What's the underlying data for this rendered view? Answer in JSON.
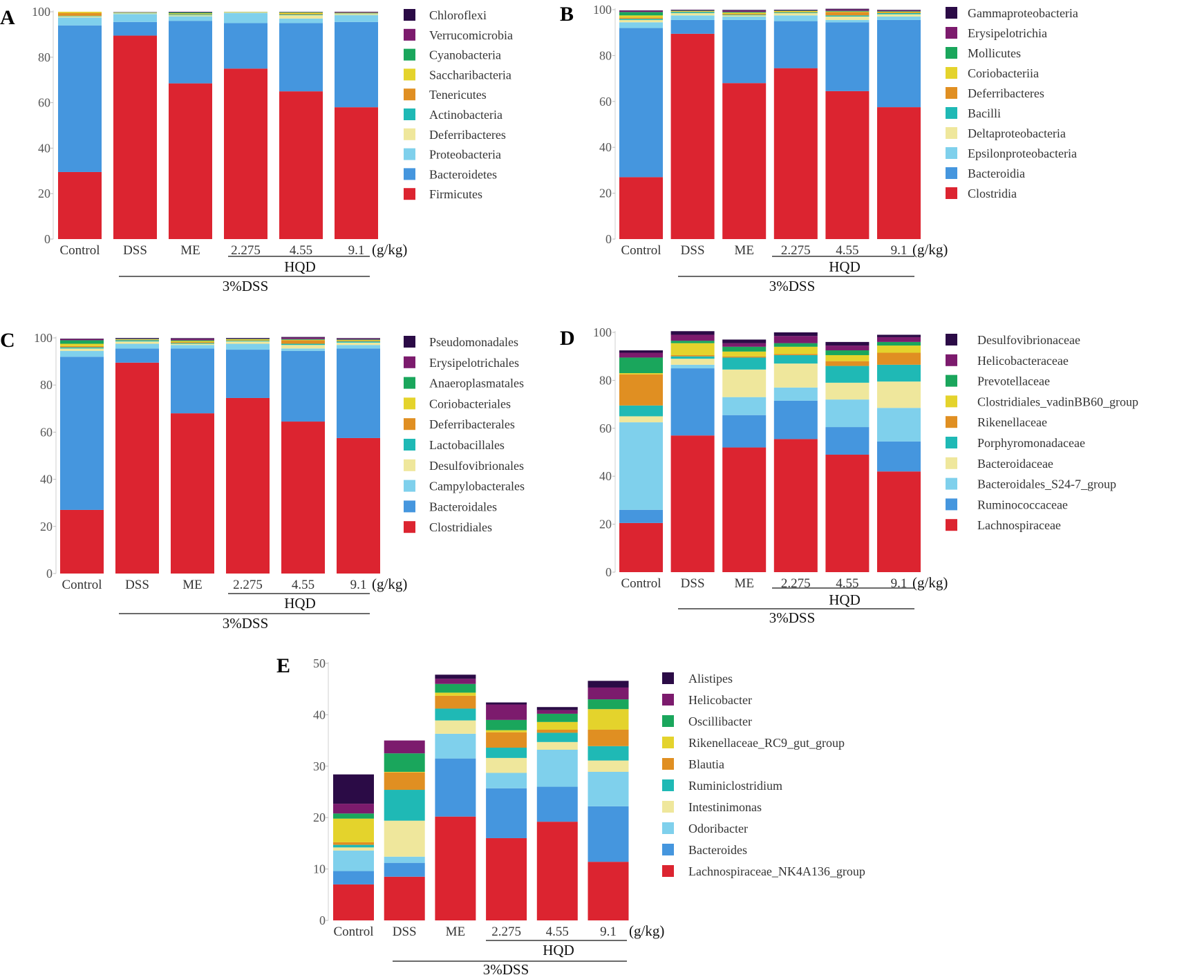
{
  "colors": {
    "c1": "#dc2430",
    "c2": "#4596de",
    "c3": "#7fd0ec",
    "c4": "#efe79c",
    "c5": "#1fb9b5",
    "c6": "#e08f22",
    "c7": "#e4d32c",
    "c8": "#1aa65c",
    "c9": "#7c1b6d",
    "c10": "#2b0b46"
  },
  "shared": {
    "categories": [
      "Control",
      "DSS",
      "ME",
      "2.275",
      "4.55",
      "9.1"
    ],
    "unit": "(g/kg)",
    "hqd_label": "HQD",
    "dss_label": "3%DSS"
  },
  "chart_data": [
    {
      "type": "bar",
      "stacked": true,
      "panel": "A",
      "ylabel": "",
      "xlabel": "",
      "ylim": [
        0,
        100
      ],
      "yticks": [
        0,
        20,
        40,
        60,
        80,
        100
      ],
      "categories": [
        "Control",
        "DSS",
        "ME",
        "2.275",
        "4.55",
        "9.1"
      ],
      "series": [
        {
          "name": "Firmicutes",
          "values": [
            29.5,
            89.5,
            68.5,
            75,
            65,
            58
          ]
        },
        {
          "name": "Bacteroidetes",
          "values": [
            64.5,
            6,
            27.5,
            20,
            30,
            37.5
          ]
        },
        {
          "name": "Proteobacteria",
          "values": [
            3.5,
            3.5,
            2,
            4.5,
            2,
            3
          ]
        },
        {
          "name": "Deferribacteres",
          "values": [
            0.5,
            0.3,
            0.5,
            0.2,
            1.5,
            0.5
          ]
        },
        {
          "name": "Actinobacteria",
          "values": [
            0.2,
            0.2,
            0.3,
            0.1,
            0.3,
            0.2
          ]
        },
        {
          "name": "Tenericutes",
          "values": [
            1.3,
            0.1,
            0.2,
            0.1,
            0.3,
            0.1
          ]
        },
        {
          "name": "Saccharibacteria",
          "values": [
            0.5,
            0.1,
            0.3,
            0.1,
            0.5,
            0.2
          ]
        },
        {
          "name": "Cyanobacteria",
          "values": [
            0,
            0.1,
            0.4,
            0,
            0.2,
            0.1
          ]
        },
        {
          "name": "Verrucomicrobia",
          "values": [
            0,
            0.1,
            0.2,
            0,
            0.1,
            0.2
          ]
        },
        {
          "name": "Chloroflexi",
          "values": [
            0,
            0,
            0.1,
            0,
            0.1,
            0.2
          ]
        }
      ]
    },
    {
      "type": "bar",
      "stacked": true,
      "panel": "B",
      "ylabel": "",
      "xlabel": "",
      "ylim": [
        0,
        100
      ],
      "yticks": [
        0,
        20,
        40,
        60,
        80,
        100
      ],
      "categories": [
        "Control",
        "DSS",
        "ME",
        "2.275",
        "4.55",
        "9.1"
      ],
      "series": [
        {
          "name": "Clostridia",
          "values": [
            27,
            89.5,
            68,
            74.5,
            64.5,
            57.5
          ]
        },
        {
          "name": "Bacteroidia",
          "values": [
            65,
            6,
            27.5,
            20.5,
            30,
            38
          ]
        },
        {
          "name": "Epsilonproteobacteria",
          "values": [
            2.5,
            2,
            1.5,
            2.5,
            1,
            1.5
          ]
        },
        {
          "name": "Deltaproteobacteria",
          "values": [
            1,
            1,
            0.5,
            1,
            1.5,
            1
          ]
        },
        {
          "name": "Bacilli",
          "values": [
            0.5,
            0.5,
            0.3,
            0.3,
            0.5,
            0.5
          ]
        },
        {
          "name": "Deferribacteres",
          "values": [
            0.5,
            0.2,
            0.4,
            0.2,
            1.5,
            0.3
          ]
        },
        {
          "name": "Coriobacteriia",
          "values": [
            1,
            0.2,
            0.5,
            0.4,
            0.2,
            0.3
          ]
        },
        {
          "name": "Mollicutes",
          "values": [
            1.5,
            0.2,
            0.3,
            0.2,
            0.3,
            0.2
          ]
        },
        {
          "name": "Erysipelotrichia",
          "values": [
            0.5,
            0.2,
            0.6,
            0.2,
            0.6,
            0.3
          ]
        },
        {
          "name": "Gammaproteobacteria",
          "values": [
            0.2,
            0.2,
            0.3,
            0.2,
            0.3,
            0.3
          ]
        }
      ]
    },
    {
      "type": "bar",
      "stacked": true,
      "panel": "C",
      "ylabel": "",
      "xlabel": "",
      "ylim": [
        0,
        100
      ],
      "yticks": [
        0,
        20,
        40,
        60,
        80,
        100
      ],
      "categories": [
        "Control",
        "DSS",
        "ME",
        "2.275",
        "4.55",
        "9.1"
      ],
      "series": [
        {
          "name": "Clostridiales",
          "values": [
            27,
            89.5,
            68,
            74.5,
            64.5,
            57.5
          ]
        },
        {
          "name": "Bacteroidales",
          "values": [
            65,
            6,
            27.5,
            20.5,
            30,
            38
          ]
        },
        {
          "name": "Campylobacterales",
          "values": [
            2.5,
            2,
            1.5,
            2.5,
            1,
            1.5
          ]
        },
        {
          "name": "Desulfovibrionales",
          "values": [
            1,
            1,
            0.5,
            1,
            1.5,
            1
          ]
        },
        {
          "name": "Lactobacillales",
          "values": [
            0.5,
            0.5,
            0.3,
            0.3,
            0.5,
            0.5
          ]
        },
        {
          "name": "Deferribacterales",
          "values": [
            0.5,
            0.2,
            0.4,
            0.2,
            1.5,
            0.3
          ]
        },
        {
          "name": "Coriobacteriales",
          "values": [
            1,
            0.2,
            0.5,
            0.4,
            0.2,
            0.3
          ]
        },
        {
          "name": "Anaeroplasmatales",
          "values": [
            1.5,
            0.2,
            0.3,
            0.2,
            0.3,
            0.2
          ]
        },
        {
          "name": "Erysipelotrichales",
          "values": [
            0.5,
            0.2,
            0.6,
            0.2,
            0.6,
            0.3
          ]
        },
        {
          "name": "Pseudomonadales",
          "values": [
            0.2,
            0.2,
            0.3,
            0.2,
            0.3,
            0.3
          ]
        }
      ]
    },
    {
      "type": "bar",
      "stacked": true,
      "panel": "D",
      "ylabel": "",
      "xlabel": "",
      "ylim": [
        0,
        100
      ],
      "yticks": [
        0,
        20,
        40,
        60,
        80,
        100
      ],
      "categories": [
        "Control",
        "DSS",
        "ME",
        "2.275",
        "4.55",
        "9.1"
      ],
      "series": [
        {
          "name": "Lachnospiraceae",
          "values": [
            20.5,
            57,
            52,
            55.5,
            49,
            42
          ]
        },
        {
          "name": "Ruminococcaceae",
          "values": [
            5.5,
            28,
            13.5,
            16,
            11.5,
            12.5
          ]
        },
        {
          "name": "Bacteroidales_S24-7_group",
          "values": [
            36.5,
            1.5,
            7.5,
            5.5,
            11.5,
            14
          ]
        },
        {
          "name": "Bacteroidaceae",
          "values": [
            2.5,
            2.5,
            11.5,
            10,
            7,
            11
          ]
        },
        {
          "name": "Porphyromonadaceae",
          "values": [
            4.5,
            1,
            5,
            3.5,
            7,
            7
          ]
        },
        {
          "name": "Rikenellaceae",
          "values": [
            13,
            0.5,
            0.5,
            0.5,
            2,
            5
          ]
        },
        {
          "name": "Clostridiales_vadinBB60_group",
          "values": [
            0.5,
            5,
            2,
            3,
            2.5,
            3
          ]
        },
        {
          "name": "Prevotellaceae",
          "values": [
            6.5,
            1,
            2,
            1.5,
            2,
            1.5
          ]
        },
        {
          "name": "Helicobacteraceae",
          "values": [
            2,
            2.5,
            1.5,
            3,
            2,
            2
          ]
        },
        {
          "name": "Desulfovibrionaceae",
          "values": [
            1,
            1.5,
            1.5,
            1.5,
            1.5,
            1
          ]
        }
      ]
    },
    {
      "type": "bar",
      "stacked": true,
      "panel": "E",
      "ylabel": "",
      "xlabel": "",
      "ylim": [
        0,
        50
      ],
      "yticks": [
        0,
        10,
        20,
        30,
        40,
        50
      ],
      "categories": [
        "Control",
        "DSS",
        "ME",
        "2.275",
        "4.55",
        "9.1"
      ],
      "series": [
        {
          "name": "Lachnospiraceae_NK4A136_group",
          "values": [
            7,
            8.5,
            20.2,
            16,
            19.2,
            11.4
          ]
        },
        {
          "name": "Bacteroides",
          "values": [
            2.6,
            2.7,
            11.3,
            9.7,
            6.8,
            10.8
          ]
        },
        {
          "name": "Odoribacter",
          "values": [
            4,
            1.2,
            4.8,
            3,
            7.2,
            6.7
          ]
        },
        {
          "name": "Intestinimonas",
          "values": [
            0.6,
            7,
            2.6,
            2.9,
            1.5,
            2.2
          ]
        },
        {
          "name": "Ruminiclostridium",
          "values": [
            0.5,
            6,
            2.3,
            2,
            1.8,
            2.8
          ]
        },
        {
          "name": "Blautia",
          "values": [
            0.5,
            3.4,
            2.5,
            3,
            0.6,
            3.2
          ]
        },
        {
          "name": "Rikenellaceae_RC9_gut_group",
          "values": [
            4.6,
            0.1,
            0.6,
            0.4,
            1.5,
            4
          ]
        },
        {
          "name": "Oscillibacter",
          "values": [
            1,
            3.6,
            1.7,
            2,
            1.6,
            1.9
          ]
        },
        {
          "name": "Helicobacter",
          "values": [
            1.9,
            2.5,
            1,
            3,
            0.7,
            2.3
          ]
        },
        {
          "name": "Alistipes",
          "values": [
            5.7,
            0,
            0.8,
            0.4,
            0.6,
            1.3
          ]
        }
      ]
    }
  ]
}
